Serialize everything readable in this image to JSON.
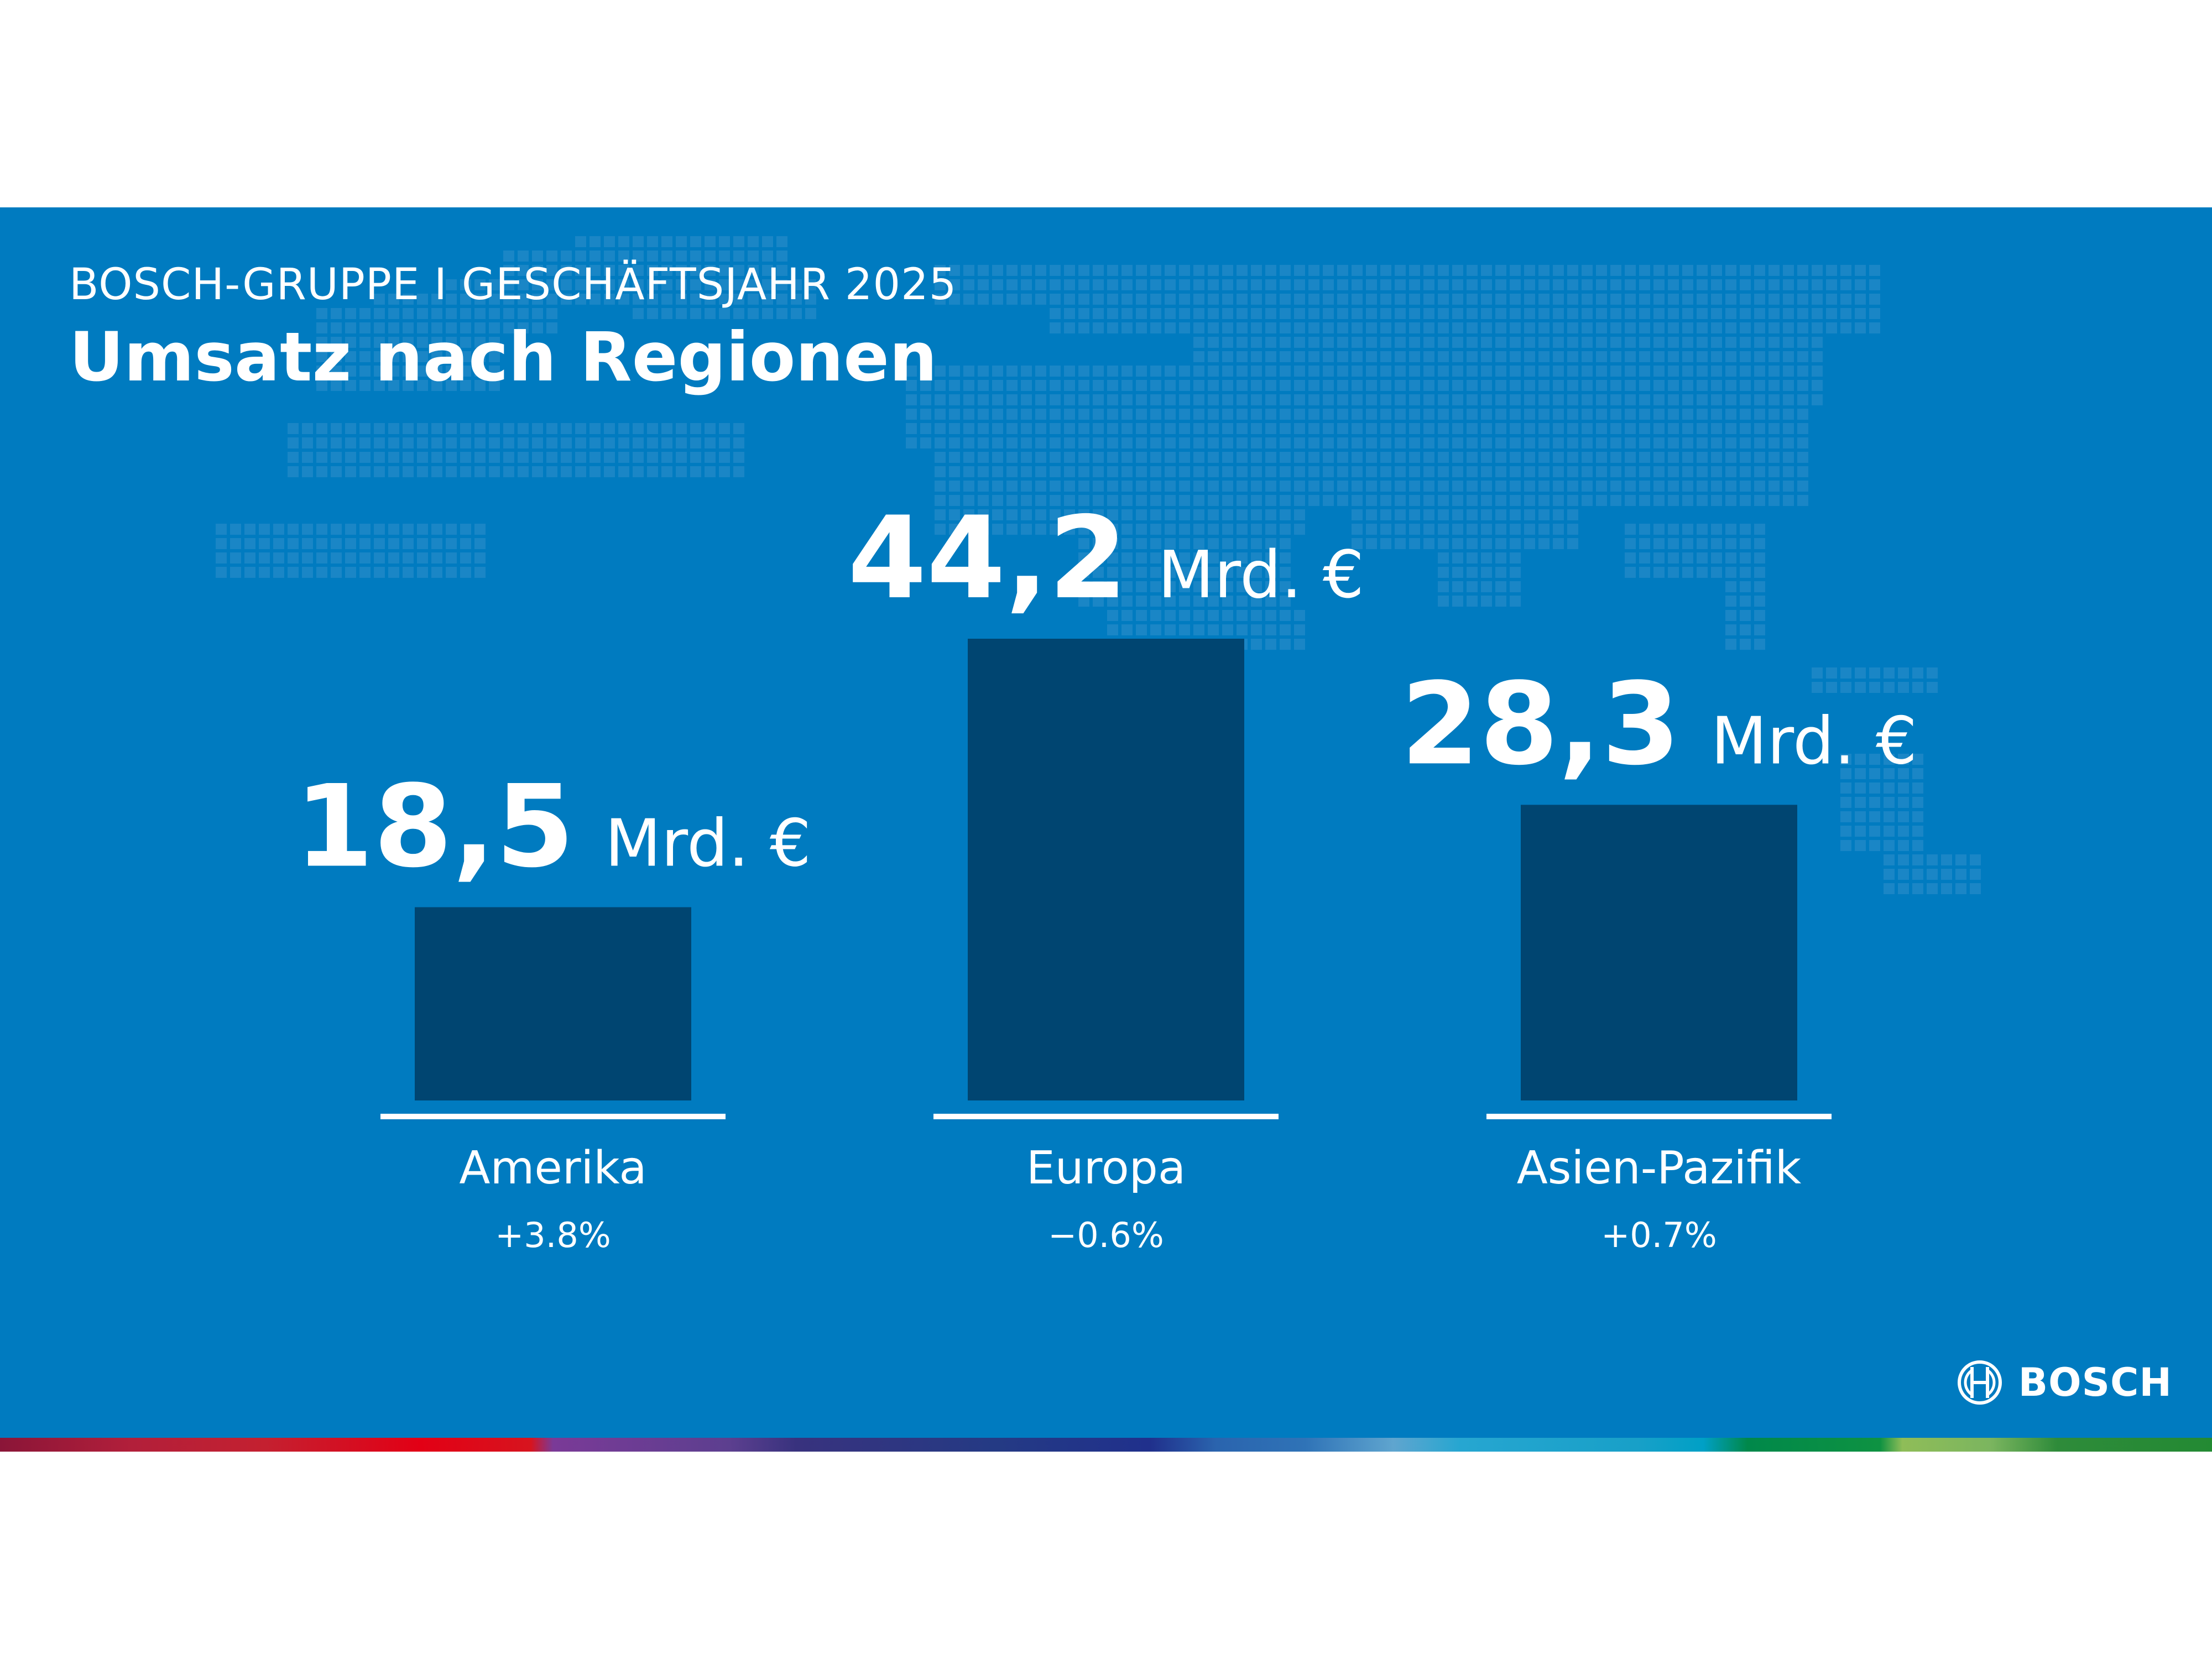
{
  "header": {
    "subtitle": "BOSCH-GRUPPE I GESCHÄFTSJAHR 2025",
    "title": "Umsatz nach Regionen"
  },
  "brand": {
    "name": "BOSCH",
    "background_color": "#007bc0",
    "bar_color": "#004571",
    "text_color": "#ffffff"
  },
  "chart_data": {
    "type": "bar",
    "title": "Umsatz nach Regionen",
    "categories": [
      "Amerika",
      "Europa",
      "Asien-Pazifik"
    ],
    "values": [
      18.5,
      44.2,
      28.3
    ],
    "value_labels": [
      "18,5",
      "44,2",
      "28,3"
    ],
    "unit": "Mrd. €",
    "changes": [
      "+3.8%",
      "−0.6%",
      "+0.7%"
    ],
    "xlabel": "",
    "ylabel": "",
    "ylim": [
      0,
      44.2
    ],
    "grid": false,
    "legend": "none"
  }
}
